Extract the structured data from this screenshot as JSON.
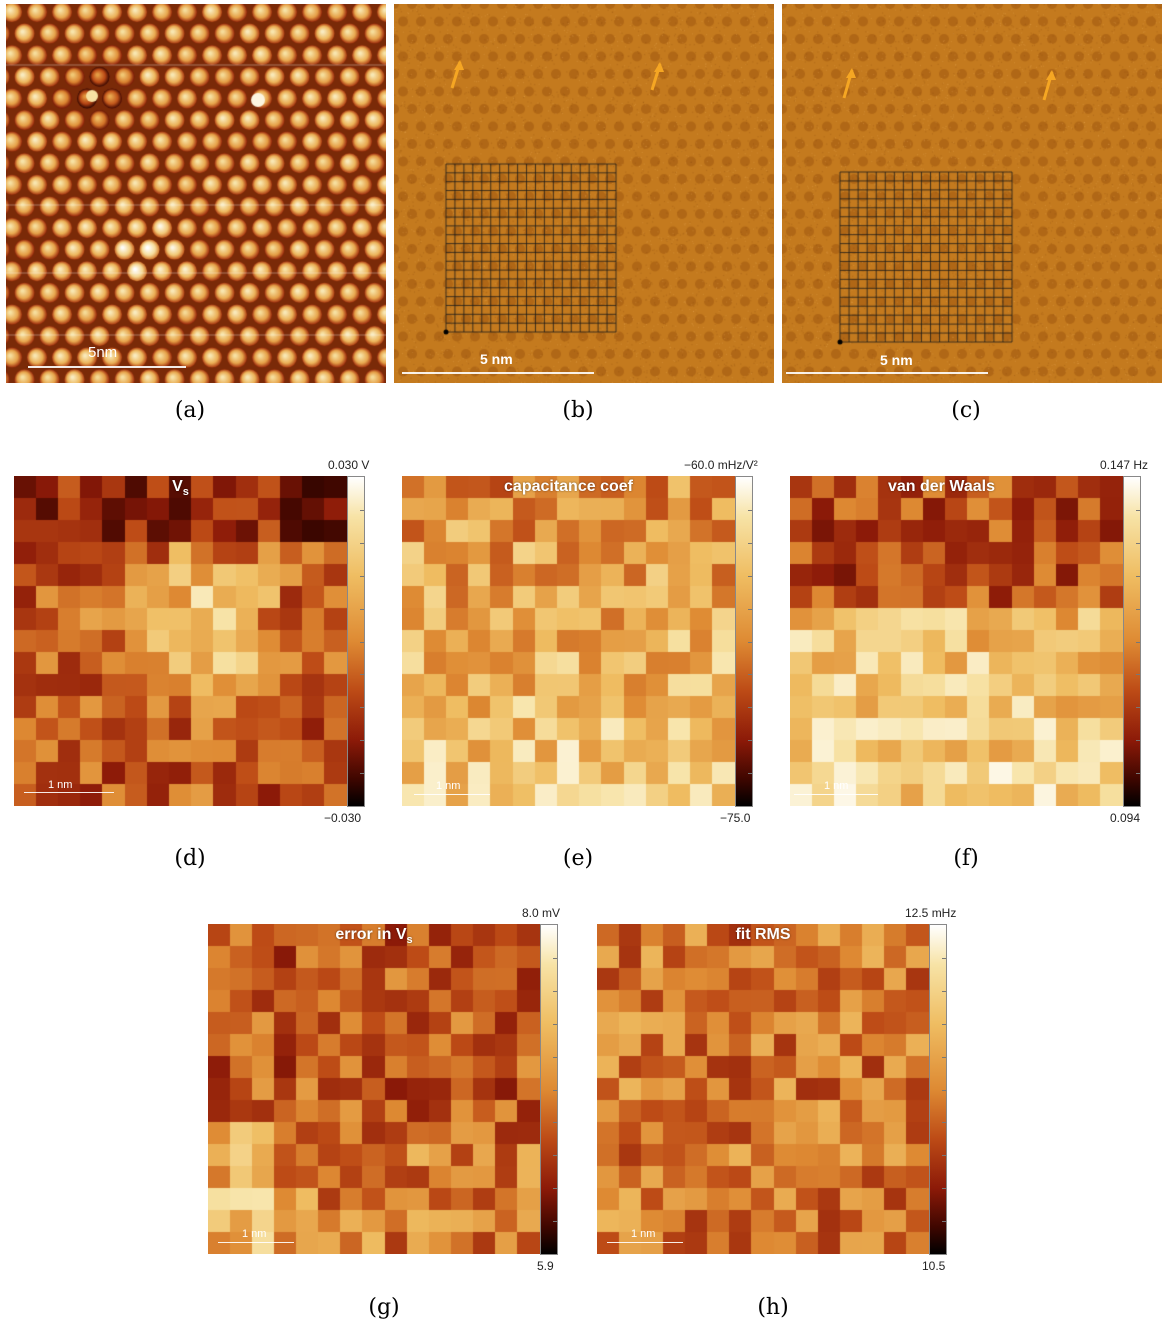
{
  "top_row": [
    {
      "id": "a",
      "caption": "(a)",
      "scalebar_label": "5nm"
    },
    {
      "id": "b",
      "caption": "(b)",
      "scalebar_label": "5 nm"
    },
    {
      "id": "c",
      "caption": "(c)",
      "scalebar_label": "5 nm"
    }
  ],
  "maps": [
    {
      "id": "d",
      "caption": "(d)",
      "title": "V",
      "title_sub": "s",
      "cbar_max": "0.030 V",
      "cbar_min": "−0.030",
      "scalebar_label": "1 nm"
    },
    {
      "id": "e",
      "caption": "(e)",
      "title": "capacitance coef",
      "title_sub": "",
      "cbar_max": "−60.0 mHz/V²",
      "cbar_min": "−75.0",
      "scalebar_label": "1 nm"
    },
    {
      "id": "f",
      "caption": "(f)",
      "title": "van der Waals",
      "title_sub": "",
      "cbar_max": "0.147 Hz",
      "cbar_min": "0.094",
      "scalebar_label": "1 nm"
    },
    {
      "id": "g",
      "caption": "(g)",
      "title": "error in V",
      "title_sub": "s",
      "cbar_max": "8.0 mV",
      "cbar_min": "5.9",
      "scalebar_label": "1 nm"
    },
    {
      "id": "h",
      "caption": "(h)",
      "title": "fit RMS",
      "title_sub": "",
      "cbar_max": "12.5 mHz",
      "cbar_min": "10.5",
      "scalebar_label": "1 nm"
    }
  ],
  "colors": {
    "colormap": [
      "#000000",
      "#3d0600",
      "#8c1a08",
      "#bd4b16",
      "#de8a33",
      "#efbd62",
      "#f7e3a6",
      "#ffffff"
    ],
    "arrow": "#f5a623",
    "grid_line": "#1a1a1a"
  },
  "icons": [
    "arrow-icon"
  ]
}
